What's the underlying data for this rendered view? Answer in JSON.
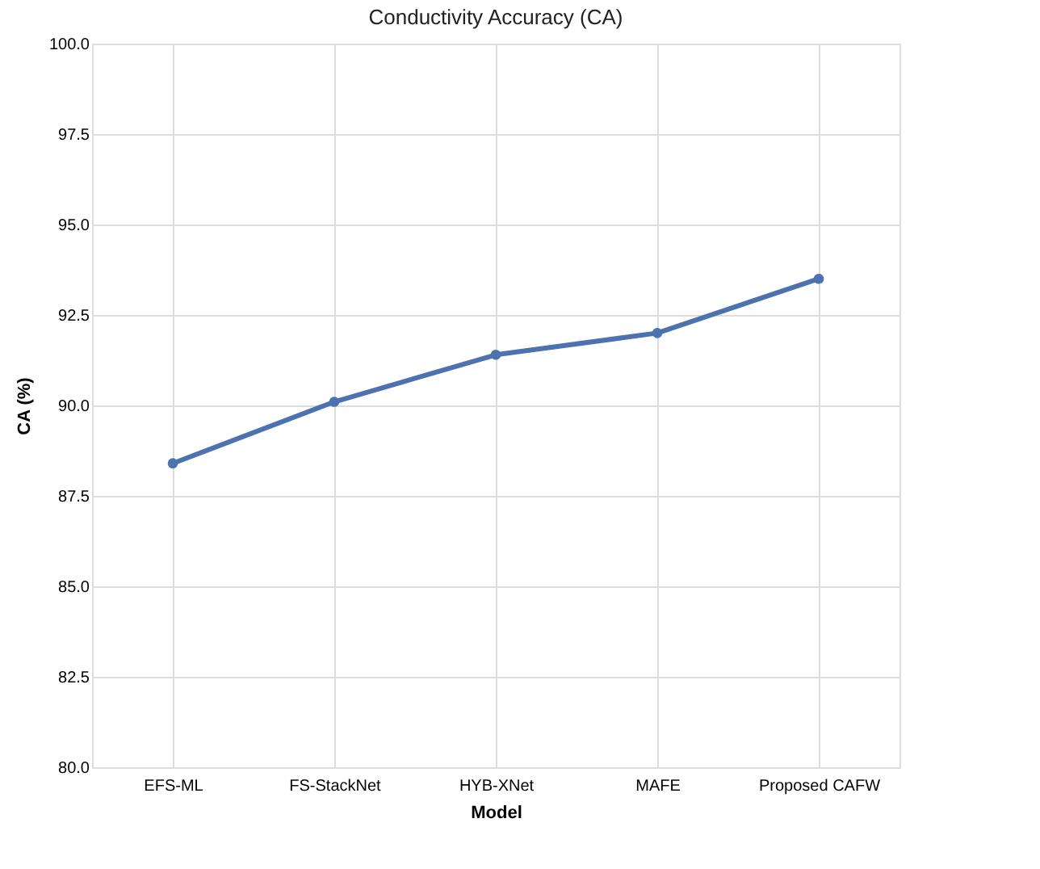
{
  "chart_data": {
    "type": "line",
    "title": "Conductivity Accuracy (CA)",
    "xlabel": "Model",
    "ylabel": "CA (%)",
    "categories": [
      "EFS-ML",
      "FS-StackNet",
      "HYB-XNet",
      "MAFE",
      "Proposed CAFW"
    ],
    "series": [
      {
        "color": "#4c72b0",
        "values": [
          88.4,
          90.1,
          91.4,
          92.0,
          93.5
        ]
      }
    ],
    "ylim": [
      80,
      100
    ],
    "yticks": [
      {
        "value": 80,
        "label": "80.0"
      },
      {
        "value": 82.5,
        "label": "82.5"
      },
      {
        "value": 85,
        "label": "85.0"
      },
      {
        "value": 87.5,
        "label": "87.5"
      },
      {
        "value": 90,
        "label": "90.0"
      },
      {
        "value": 92.5,
        "label": "92.5"
      },
      {
        "value": 95,
        "label": "95.0"
      },
      {
        "value": 97.5,
        "label": "97.5"
      },
      {
        "value": 100,
        "label": "100.0"
      }
    ],
    "grid": true,
    "marker": "circle",
    "line_style": "solid",
    "legend": false
  }
}
